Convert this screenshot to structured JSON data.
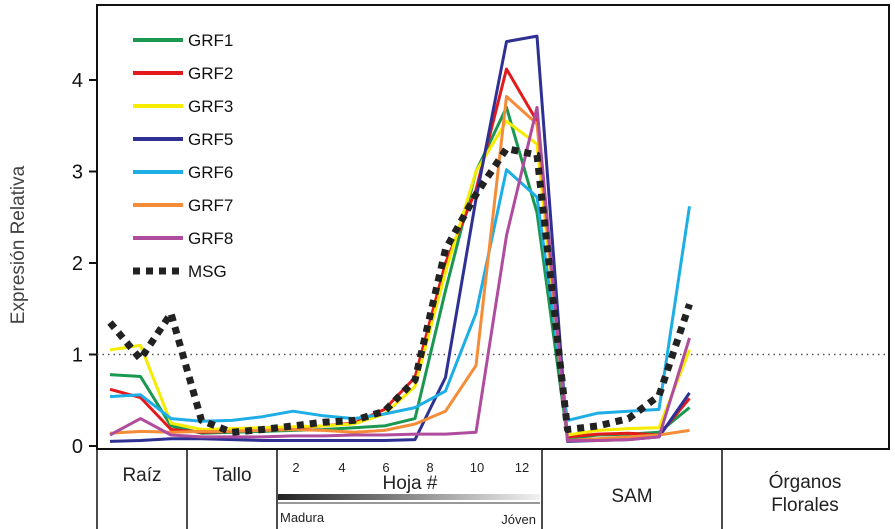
{
  "chart_data": {
    "type": "line",
    "ylabel": "Expresión Relativa",
    "ylim": [
      0,
      4.5
    ],
    "yticks": [
      "0",
      "1",
      "2",
      "3",
      "4"
    ],
    "reference_line": 1,
    "x": [
      0,
      1,
      2,
      3,
      4,
      5,
      6,
      7,
      8,
      9,
      10,
      11,
      12,
      13,
      14,
      15,
      16,
      17,
      18,
      19,
      20
    ],
    "series": [
      {
        "name": "GRF1",
        "color": "#1a9850",
        "dash": false,
        "values": [
          0.78,
          0.76,
          0.22,
          0.14,
          0.15,
          0.16,
          0.17,
          0.18,
          0.2,
          0.22,
          0.3,
          1.7,
          3.0,
          3.7,
          2.55,
          0.08,
          0.12,
          0.13,
          0.15,
          0.42,
          null
        ]
      },
      {
        "name": "GRF2",
        "color": "#e31a1c",
        "dash": false,
        "values": [
          0.62,
          0.53,
          0.18,
          0.15,
          0.16,
          0.18,
          0.2,
          0.22,
          0.25,
          0.4,
          0.75,
          2.0,
          2.8,
          4.12,
          3.55,
          0.1,
          0.13,
          0.14,
          0.12,
          0.52,
          null
        ]
      },
      {
        "name": "GRF3",
        "color": "#f5ec00",
        "dash": false,
        "values": [
          1.05,
          1.1,
          0.25,
          0.18,
          0.19,
          0.2,
          0.21,
          0.22,
          0.24,
          0.35,
          0.65,
          1.9,
          3.0,
          3.55,
          3.3,
          0.12,
          0.17,
          0.19,
          0.2,
          1.05,
          null
        ]
      },
      {
        "name": "GRF5",
        "color": "#2e3192",
        "dash": false,
        "values": [
          0.05,
          0.06,
          0.08,
          0.08,
          0.07,
          0.06,
          0.06,
          0.06,
          0.06,
          0.06,
          0.07,
          0.75,
          2.7,
          4.42,
          4.48,
          0.05,
          0.06,
          0.07,
          0.1,
          0.58,
          null
        ]
      },
      {
        "name": "GRF6",
        "color": "#1eaee6",
        "dash": false,
        "values": [
          0.54,
          0.56,
          0.3,
          0.27,
          0.28,
          0.32,
          0.38,
          0.33,
          0.3,
          0.35,
          0.42,
          0.6,
          1.45,
          3.02,
          2.72,
          0.28,
          0.36,
          0.38,
          0.4,
          2.62,
          null
        ]
      },
      {
        "name": "GRF7",
        "color": "#f58c38",
        "dash": false,
        "values": [
          0.14,
          0.16,
          0.15,
          0.16,
          0.16,
          0.17,
          0.18,
          0.17,
          0.15,
          0.17,
          0.24,
          0.38,
          0.88,
          3.82,
          3.52,
          0.06,
          0.08,
          0.1,
          0.12,
          0.17,
          null
        ]
      },
      {
        "name": "GRF8",
        "color": "#b04c9e",
        "dash": false,
        "values": [
          0.12,
          0.3,
          0.12,
          0.1,
          0.1,
          0.1,
          0.11,
          0.11,
          0.12,
          0.12,
          0.13,
          0.13,
          0.15,
          2.3,
          3.7,
          0.06,
          0.06,
          0.07,
          0.1,
          1.18,
          null
        ]
      },
      {
        "name": "MSG",
        "color": "#222222",
        "dash": true,
        "values": [
          1.35,
          0.95,
          1.45,
          0.28,
          0.15,
          0.18,
          0.22,
          0.26,
          0.28,
          0.38,
          0.72,
          2.15,
          2.75,
          3.25,
          3.18,
          0.18,
          0.22,
          0.3,
          0.55,
          1.55,
          null
        ]
      }
    ],
    "categories": [
      {
        "label": "Raíz"
      },
      {
        "label": "Tallo"
      },
      {
        "label": "Hoja #"
      },
      {
        "label": "SAM"
      },
      {
        "label": "Órganos",
        "label2": "Florales"
      }
    ],
    "leaf_numbers": [
      "2",
      "4",
      "6",
      "8",
      "10",
      "12"
    ],
    "leaf_gradient_labels": {
      "start": "Madura",
      "end": "Jóven"
    }
  }
}
